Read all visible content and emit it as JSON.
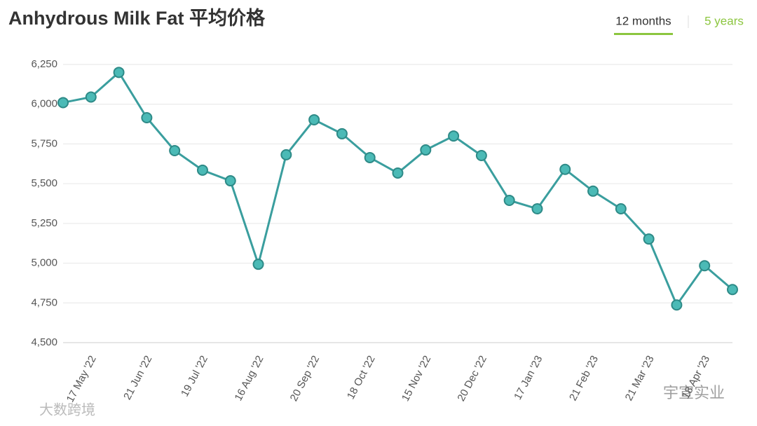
{
  "chart_data": {
    "type": "line",
    "title": "Anhydrous Milk Fat 平均价格",
    "toggles": [
      "12 months",
      "5 years"
    ],
    "watermarks": [
      "宇宣实业",
      "大数跨境"
    ],
    "categories": [
      null,
      "17 May '22",
      null,
      "21 Jun '22",
      null,
      "19 Jul '22",
      null,
      "16 Aug '22",
      null,
      "20 Sep '22",
      null,
      "18 Oct '22",
      null,
      "15 Nov '22",
      null,
      "20 Dec '22",
      null,
      "17 Jan '23",
      null,
      "21 Feb '23",
      null,
      "21 Mar '23",
      null,
      "18 Apr '23",
      null
    ],
    "series": [
      {
        "name": "Anhydrous Milk Fat",
        "color": "#3a9e9e",
        "values": [
          6010,
          6045,
          6200,
          5915,
          5708,
          5585,
          5518,
          4993,
          5682,
          5902,
          5814,
          5664,
          5567,
          5712,
          5800,
          5677,
          5395,
          5342,
          5590,
          5453,
          5342,
          5152,
          4737,
          4984,
          4834
        ]
      }
    ],
    "ylim": [
      4500,
      6250
    ],
    "yticks": [
      {
        "value": 4500,
        "label": "4,500"
      },
      {
        "value": 4750,
        "label": "4,750"
      },
      {
        "value": 5000,
        "label": "5,000"
      },
      {
        "value": 5250,
        "label": "5,250"
      },
      {
        "value": 5500,
        "label": "5,500"
      },
      {
        "value": 5750,
        "label": "5,750"
      },
      {
        "value": 6000,
        "label": "6,000"
      },
      {
        "value": 6250,
        "label": "6,250"
      }
    ],
    "grid": true
  }
}
